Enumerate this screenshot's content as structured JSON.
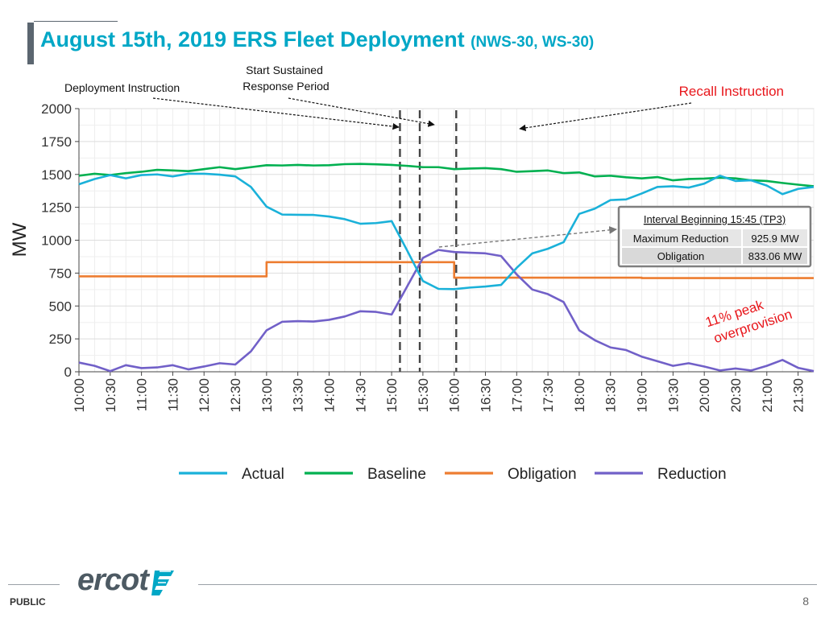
{
  "slide": {
    "title_main": "August 15th, 2019 ERS Fleet Deployment",
    "title_sub": "(NWS-30, WS-30)",
    "footer_label": "PUBLIC",
    "page_number": "8",
    "logo_text": "ercot",
    "colors": {
      "title": "#00a7c6",
      "accent_bar": "#5b6670",
      "annotation_red": "#e8161b"
    }
  },
  "annotations": {
    "deployment_instruction": "Deployment Instruction",
    "start_sustained_line1": "Start Sustained",
    "start_sustained_line2": "Response Period",
    "recall_instruction": "Recall Instruction",
    "overprovision_line1": "11% peak",
    "overprovision_line2": "overprovision",
    "info_box": {
      "header": "Interval Beginning 15:45 (TP3)",
      "row1_label": "Maximum Reduction",
      "row1_value": "925.9 MW",
      "row2_label": "Obligation",
      "row2_value": "833.06 MW"
    }
  },
  "chart_data": {
    "type": "line",
    "title": "",
    "xlabel": "",
    "ylabel": "MW",
    "ylim": [
      0,
      2000
    ],
    "yticks": [
      0,
      250,
      500,
      750,
      1000,
      1250,
      1500,
      1750,
      2000
    ],
    "x_start_minutes": 600,
    "x_step_minutes": 15,
    "x_tick_labels": [
      "10:00",
      "10:30",
      "11:00",
      "11:30",
      "12:00",
      "12:30",
      "13:00",
      "13:30",
      "14:00",
      "14:30",
      "15:00",
      "15:30",
      "16:00",
      "16:30",
      "17:00",
      "17:30",
      "18:00",
      "18:30",
      "19:00",
      "19:30",
      "20:00",
      "20:30",
      "21:00",
      "21:30"
    ],
    "vertical_markers_minutes": [
      908,
      927,
      962
    ],
    "legend_position": "bottom",
    "series": [
      {
        "name": "Actual",
        "color": "#1ab1d9",
        "values": [
          1425,
          1465,
          1495,
          1470,
          1495,
          1500,
          1485,
          1505,
          1505,
          1498,
          1485,
          1405,
          1255,
          1195,
          1193,
          1192,
          1180,
          1160,
          1125,
          1130,
          1145,
          920,
          690,
          630,
          628,
          640,
          648,
          660,
          790,
          900,
          935,
          985,
          1200,
          1240,
          1305,
          1310,
          1355,
          1405,
          1410,
          1400,
          1430,
          1490,
          1450,
          1455,
          1415,
          1350,
          1390,
          1405
        ]
      },
      {
        "name": "Baseline",
        "color": "#00b050",
        "values": [
          1490,
          1505,
          1495,
          1510,
          1520,
          1535,
          1530,
          1525,
          1540,
          1555,
          1540,
          1555,
          1570,
          1568,
          1572,
          1568,
          1570,
          1578,
          1580,
          1577,
          1572,
          1565,
          1555,
          1555,
          1540,
          1545,
          1548,
          1540,
          1520,
          1525,
          1530,
          1510,
          1515,
          1485,
          1490,
          1478,
          1470,
          1480,
          1455,
          1465,
          1468,
          1475,
          1470,
          1455,
          1450,
          1435,
          1422,
          1410
        ]
      },
      {
        "name": "Obligation",
        "color": "#ed7d31",
        "values": [
          725,
          725,
          725,
          725,
          725,
          725,
          725,
          725,
          725,
          725,
          725,
          725,
          833.06,
          833.06,
          833.06,
          833.06,
          833.06,
          833.06,
          833.06,
          833.06,
          833.06,
          833.06,
          833.06,
          833.06,
          715,
          715,
          715,
          715,
          715,
          715,
          715,
          715,
          715,
          715,
          715,
          715,
          712,
          712,
          712,
          712,
          712,
          712,
          712,
          712,
          712,
          712,
          712,
          712
        ]
      },
      {
        "name": "Reduction",
        "color": "#7160c8",
        "values": [
          70,
          45,
          5,
          50,
          28,
          33,
          50,
          18,
          40,
          65,
          55,
          155,
          315,
          380,
          385,
          382,
          395,
          420,
          460,
          455,
          435,
          650,
          865,
          925.9,
          910,
          905,
          900,
          880,
          740,
          625,
          590,
          530,
          315,
          240,
          185,
          165,
          115,
          80,
          45,
          65,
          40,
          10,
          25,
          10,
          45,
          90,
          30,
          5
        ]
      }
    ]
  }
}
